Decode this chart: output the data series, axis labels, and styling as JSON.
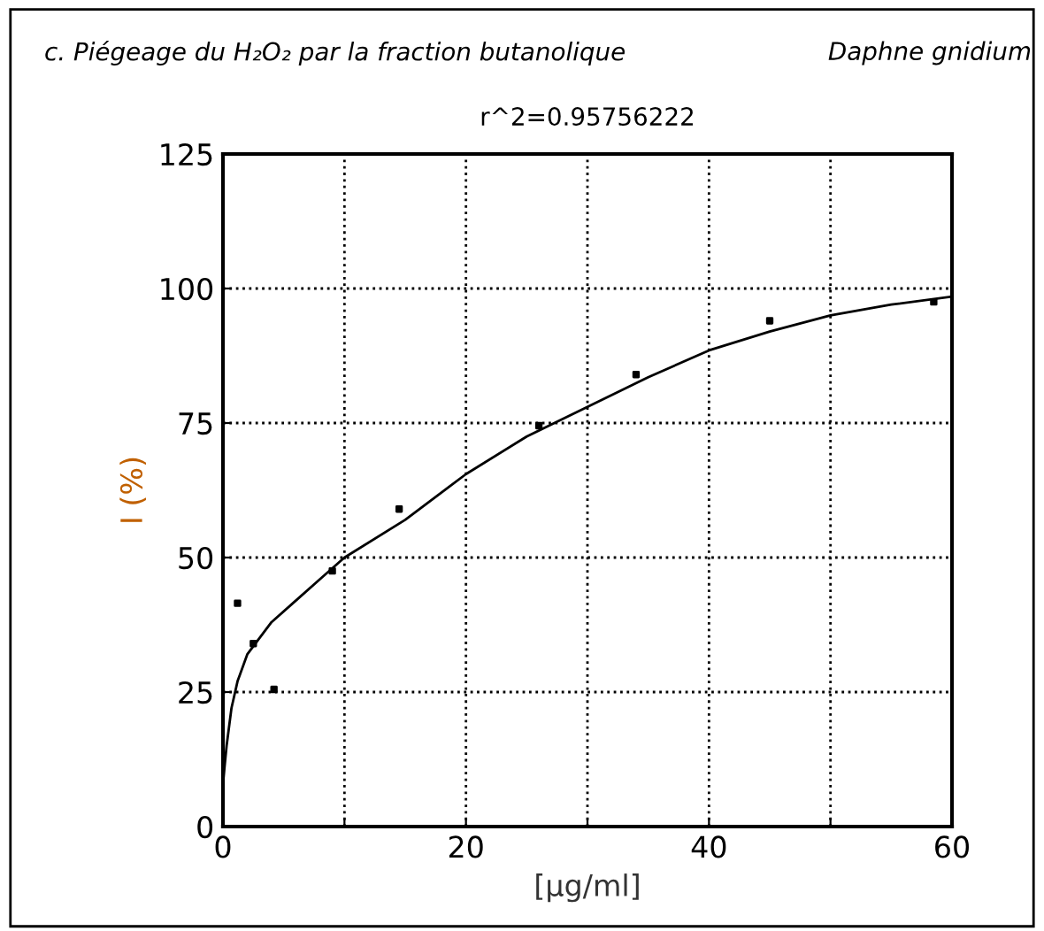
{
  "chart_data": {
    "type": "scatter",
    "title": "c. Piégeage du H₂O₂ par la fraction butanolique",
    "subtitle": "Daphne gnidium",
    "annotations": [
      "r^2=0.95756222"
    ],
    "xlabel": "[µg/ml]",
    "ylabel": "I (%)",
    "series": [
      {
        "color": "#000000",
        "marker": "square",
        "x": [
          1.2,
          2.5,
          4.2,
          9,
          14.5,
          26,
          34,
          45,
          58.5
        ],
        "values": [
          41.5,
          34,
          25.5,
          47.5,
          59,
          74.5,
          84,
          94,
          97.5
        ]
      },
      {
        "type": "line",
        "color": "#000000",
        "marker": "none",
        "x": [
          0,
          0.3,
          0.7,
          1.2,
          2,
          3,
          4,
          6,
          8,
          10,
          15,
          20,
          25,
          30,
          35,
          40,
          45,
          50,
          55,
          60
        ],
        "values": [
          8,
          15,
          22,
          27,
          32,
          35,
          38,
          42,
          46,
          50,
          57,
          65.5,
          72.5,
          78,
          83.5,
          88.5,
          92,
          95,
          97,
          98.5
        ]
      }
    ],
    "xlim": [
      0,
      60
    ],
    "xticks": [
      0,
      {
        "value": 10,
        "label": null
      },
      20,
      {
        "value": 30,
        "label": null
      },
      40,
      {
        "value": 50,
        "label": null
      },
      60
    ],
    "ylim": [
      0,
      125
    ],
    "yticks": [
      0,
      25,
      50,
      75,
      100,
      125
    ],
    "grid": true
  }
}
